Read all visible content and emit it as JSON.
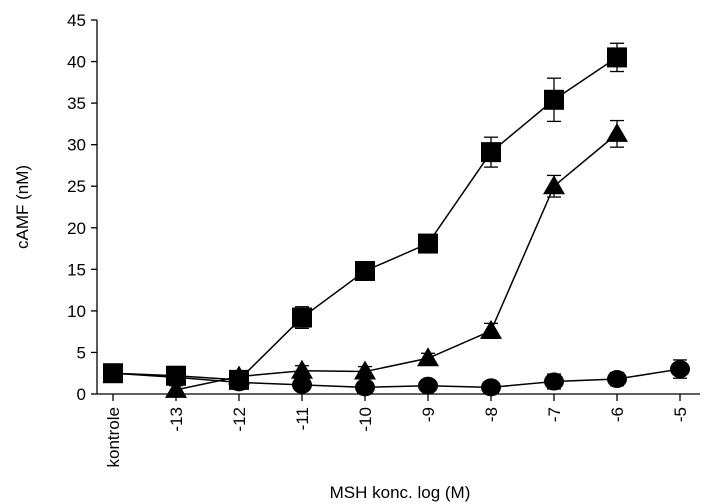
{
  "chart_data": {
    "type": "line",
    "xlabel": "MSH  konc. log (M)",
    "ylabel": "cAMF (nM)",
    "ylim": [
      0,
      45
    ],
    "yticks": [
      0,
      5,
      10,
      15,
      20,
      25,
      30,
      35,
      40,
      45
    ],
    "categories": [
      "kontrole",
      "-13",
      "-12",
      "-11",
      "-10",
      "-9",
      "-8",
      "-7",
      "-6",
      "-5"
    ],
    "grid": false,
    "legend": "none",
    "series": [
      {
        "marker": "square",
        "color": "#000000",
        "x": [
          "kontrole",
          "-13",
          "-12",
          "-11",
          "-10",
          "-9",
          "-8",
          "-7",
          "-6"
        ],
        "values": [
          2.5,
          2.2,
          1.7,
          9.2,
          14.8,
          18.1,
          29.1,
          35.4,
          40.5
        ],
        "errors": [
          1.0,
          0.8,
          0.8,
          1.3,
          0.8,
          1.0,
          1.8,
          2.6,
          1.7
        ]
      },
      {
        "marker": "triangle",
        "color": "#000000",
        "x": [
          "-13",
          "-12",
          "-11",
          "-10",
          "-9",
          "-8",
          "-7",
          "-6"
        ],
        "values": [
          0.5,
          2.1,
          2.8,
          2.7,
          4.3,
          7.6,
          25.0,
          31.3
        ],
        "errors": [
          0.5,
          0.7,
          0.6,
          0.6,
          0.6,
          0.9,
          1.3,
          1.6
        ]
      },
      {
        "marker": "circle",
        "color": "#000000",
        "x": [
          "kontrole",
          "-13",
          "-12",
          "-11",
          "-10",
          "-9",
          "-8",
          "-7",
          "-6",
          "-5"
        ],
        "values": [
          2.5,
          2.0,
          1.4,
          1.1,
          0.8,
          1.0,
          0.8,
          1.5,
          1.8,
          3.0
        ],
        "errors": [
          0.8,
          0.6,
          0.6,
          0.6,
          0.6,
          0.6,
          0.5,
          0.9,
          0.8,
          1.1
        ]
      }
    ]
  }
}
